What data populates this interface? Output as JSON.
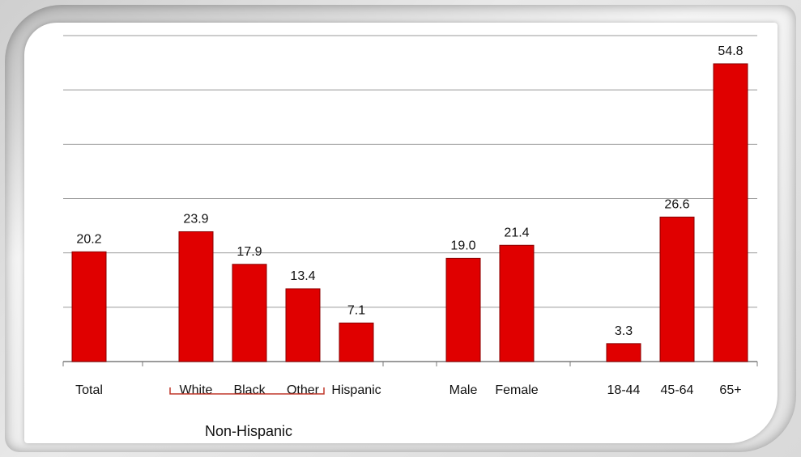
{
  "chart_data": {
    "type": "bar",
    "categories": [
      "Total",
      "White",
      "Black",
      "Other",
      "Hispanic",
      "Male",
      "Female",
      "18-44",
      "45-64",
      "65+"
    ],
    "values": [
      20.2,
      23.9,
      17.9,
      13.4,
      7.1,
      19.0,
      21.4,
      3.3,
      26.6,
      54.8
    ],
    "value_labels": [
      "20.2",
      "23.9",
      "17.9",
      "13.4",
      "7.1",
      "19.0",
      "21.4",
      "3.3",
      "26.6",
      "54.8"
    ],
    "group_label": "Non-Hispanic",
    "group_members": [
      "White",
      "Black",
      "Other"
    ],
    "ylim": [
      0,
      60
    ],
    "grid": true,
    "bar_color": "#e00000",
    "bar_edge_color": "#8a0000"
  }
}
